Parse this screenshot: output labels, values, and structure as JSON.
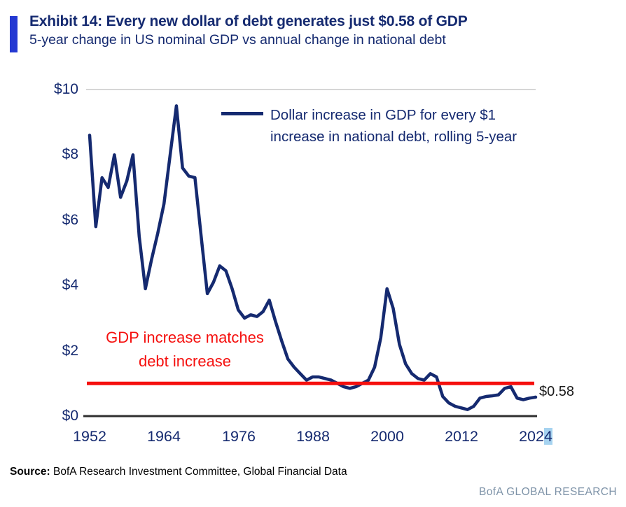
{
  "header": {
    "title": "Exhibit 14: Every new dollar of debt generates just $0.58 of GDP",
    "subtitle": "5-year change in US nominal GDP vs annual change in national debt"
  },
  "legend": {
    "line1": "Dollar increase in GDP for every $1",
    "line2": "increase in national debt, rolling 5-year"
  },
  "annotations": {
    "red_note_line1": "GDP increase matches",
    "red_note_line2": "debt increase",
    "end_value_label": "$0.58"
  },
  "footer": {
    "source_label": "Source:",
    "source_text": " BofA Research Investment Committee, Global Financial Data",
    "branding": "BofA GLOBAL RESEARCH"
  },
  "colors": {
    "navy_text": "#152a70",
    "line": "#152a70",
    "red": "#f5100e",
    "accent_bar": "#2439d2",
    "branding": "#7e93a8",
    "axis": "#2f2f2f",
    "gridline": "#c9c9c9",
    "highlight": "#a6d3f0"
  },
  "chart_data": {
    "type": "line",
    "title": "Exhibit 14: Every new dollar of debt generates just $0.58 of GDP",
    "subtitle": "5-year change in US nominal GDP vs annual change in national debt",
    "xlabel": "",
    "ylabel": "",
    "xlim": [
      1952,
      2024
    ],
    "ylim": [
      0,
      10
    ],
    "grid": "top gridline only",
    "legend_position": "top-center",
    "x_ticks": [
      1952,
      1964,
      1976,
      1988,
      2000,
      2012,
      2024
    ],
    "x_tick_labels": [
      "1952",
      "1964",
      "1976",
      "1988",
      "2000",
      "2012",
      "2024"
    ],
    "last_tick_prefix": "202",
    "last_tick_suffix": "4",
    "y_ticks": [
      10,
      8,
      6,
      4,
      2,
      0
    ],
    "y_tick_labels": [
      "$10",
      "$8",
      "$6",
      "$4",
      "$2",
      "$0"
    ],
    "series": [
      {
        "name": "Dollar increase in GDP for every $1 increase in national debt, rolling 5-year",
        "x": [
          1952,
          1953,
          1954,
          1955,
          1956,
          1957,
          1958,
          1959,
          1960,
          1961,
          1962,
          1963,
          1964,
          1965,
          1966,
          1967,
          1968,
          1969,
          1970,
          1971,
          1972,
          1973,
          1974,
          1975,
          1976,
          1977,
          1978,
          1979,
          1980,
          1981,
          1982,
          1983,
          1984,
          1985,
          1986,
          1987,
          1988,
          1989,
          1990,
          1991,
          1992,
          1993,
          1994,
          1995,
          1996,
          1997,
          1998,
          1999,
          2000,
          2001,
          2002,
          2003,
          2004,
          2005,
          2006,
          2007,
          2008,
          2009,
          2010,
          2011,
          2012,
          2013,
          2014,
          2015,
          2016,
          2017,
          2018,
          2019,
          2020,
          2021,
          2022,
          2023,
          2024
        ],
        "values": [
          8.6,
          5.8,
          7.3,
          7.0,
          8.0,
          6.7,
          7.2,
          8.0,
          5.5,
          3.9,
          4.8,
          5.6,
          6.5,
          8.0,
          9.5,
          7.6,
          7.35,
          7.3,
          5.5,
          3.75,
          4.1,
          4.6,
          4.45,
          3.9,
          3.25,
          3.0,
          3.1,
          3.05,
          3.2,
          3.55,
          2.9,
          2.3,
          1.75,
          1.5,
          1.3,
          1.1,
          1.2,
          1.2,
          1.15,
          1.1,
          1.0,
          0.9,
          0.85,
          0.9,
          1.0,
          1.1,
          1.5,
          2.4,
          3.9,
          3.3,
          2.2,
          1.6,
          1.3,
          1.15,
          1.1,
          1.3,
          1.2,
          0.6,
          0.4,
          0.3,
          0.25,
          0.2,
          0.3,
          0.55,
          0.6,
          0.62,
          0.65,
          0.85,
          0.9,
          0.55,
          0.5,
          0.55,
          0.58
        ]
      }
    ],
    "reference_line": {
      "value": 1.0,
      "label": "GDP increase matches debt increase",
      "color": "#f5100e"
    },
    "end_label": {
      "text": "$0.58",
      "value": 0.58
    }
  }
}
